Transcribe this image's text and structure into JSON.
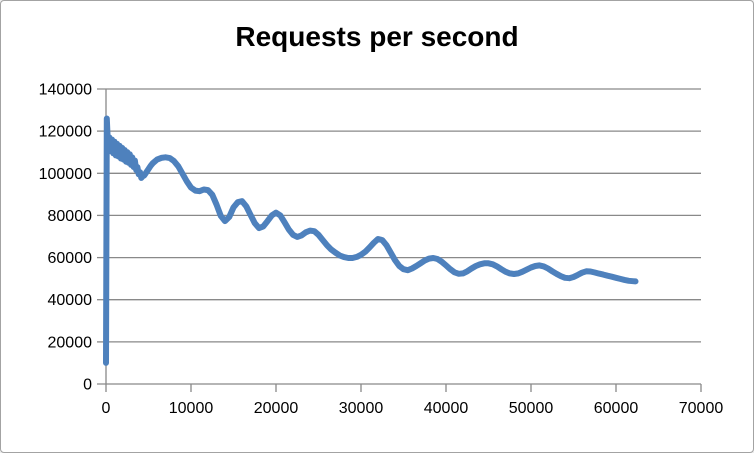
{
  "chart": {
    "title": "Requests per second"
  },
  "chart_data": {
    "type": "line",
    "title": "Requests per second",
    "xlabel": "",
    "ylabel": "",
    "xlim": [
      0,
      70000
    ],
    "ylim": [
      0,
      140000
    ],
    "x_ticks": [
      0,
      10000,
      20000,
      30000,
      40000,
      50000,
      60000,
      70000
    ],
    "x_tick_labels": [
      "0",
      "10000",
      "20000",
      "30000",
      "40000",
      "50000",
      "60000",
      "70000"
    ],
    "y_ticks": [
      0,
      20000,
      40000,
      60000,
      80000,
      100000,
      120000,
      140000
    ],
    "y_tick_labels": [
      "0",
      "20000",
      "40000",
      "60000",
      "80000",
      "100000",
      "120000",
      "140000"
    ],
    "grid": "horizontal",
    "legend": "none",
    "colors": {
      "line": "#4E81BD",
      "axis": "#898989",
      "gridline": "#898989",
      "text": "#000000",
      "background": "#FFFFFF",
      "border": "#A3A3A3"
    },
    "series": [
      {
        "name": "Requests per second",
        "color": "#4E81BD",
        "line_width": 6,
        "points": [
          [
            0,
            10000
          ],
          [
            100,
            126000
          ],
          [
            250,
            112000
          ],
          [
            400,
            117000
          ],
          [
            550,
            110500
          ],
          [
            700,
            116000
          ],
          [
            850,
            109500
          ],
          [
            1000,
            115000
          ],
          [
            1150,
            108500
          ],
          [
            1300,
            114000
          ],
          [
            1450,
            108000
          ],
          [
            1600,
            113000
          ],
          [
            1750,
            107000
          ],
          [
            1900,
            112000
          ],
          [
            2050,
            106500
          ],
          [
            2200,
            111000
          ],
          [
            2350,
            105500
          ],
          [
            2500,
            110000
          ],
          [
            2650,
            105000
          ],
          [
            2800,
            109000
          ],
          [
            2950,
            104000
          ],
          [
            3100,
            107500
          ],
          [
            3250,
            103000
          ],
          [
            3400,
            106000
          ],
          [
            3550,
            101500
          ],
          [
            3700,
            103000
          ],
          [
            3850,
            99500
          ],
          [
            4000,
            100500
          ],
          [
            4150,
            97800
          ],
          [
            4300,
            98500
          ],
          [
            4500,
            99000
          ],
          [
            4750,
            100500
          ],
          [
            5000,
            102000
          ],
          [
            5250,
            103500
          ],
          [
            5500,
            104800
          ],
          [
            6000,
            106500
          ],
          [
            6500,
            107300
          ],
          [
            7000,
            107600
          ],
          [
            7500,
            107200
          ],
          [
            8000,
            105800
          ],
          [
            8500,
            103300
          ],
          [
            9000,
            99800
          ],
          [
            9500,
            96200
          ],
          [
            10000,
            93200
          ],
          [
            10500,
            91800
          ],
          [
            11000,
            91500
          ],
          [
            11500,
            92300
          ],
          [
            12000,
            92000
          ],
          [
            12500,
            89800
          ],
          [
            13000,
            85200
          ],
          [
            13500,
            79800
          ],
          [
            14000,
            77300
          ],
          [
            14500,
            79300
          ],
          [
            15000,
            83800
          ],
          [
            15500,
            86300
          ],
          [
            16000,
            86800
          ],
          [
            16500,
            84300
          ],
          [
            17000,
            80300
          ],
          [
            17500,
            76300
          ],
          [
            18000,
            74000
          ],
          [
            18500,
            74800
          ],
          [
            19000,
            77300
          ],
          [
            19500,
            80000
          ],
          [
            20000,
            81300
          ],
          [
            20500,
            80000
          ],
          [
            21000,
            76800
          ],
          [
            21500,
            73300
          ],
          [
            22000,
            70800
          ],
          [
            22500,
            69800
          ],
          [
            23000,
            70500
          ],
          [
            23500,
            72000
          ],
          [
            24000,
            72800
          ],
          [
            24500,
            72500
          ],
          [
            25000,
            70800
          ],
          [
            25500,
            68300
          ],
          [
            26000,
            65800
          ],
          [
            26500,
            63800
          ],
          [
            27000,
            62300
          ],
          [
            27500,
            61000
          ],
          [
            28000,
            60200
          ],
          [
            28500,
            59800
          ],
          [
            29000,
            59800
          ],
          [
            29500,
            60300
          ],
          [
            30000,
            61300
          ],
          [
            30500,
            62800
          ],
          [
            31000,
            64800
          ],
          [
            31500,
            67000
          ],
          [
            32000,
            68800
          ],
          [
            32500,
            68300
          ],
          [
            33000,
            65800
          ],
          [
            33500,
            62300
          ],
          [
            34000,
            58800
          ],
          [
            34500,
            56000
          ],
          [
            35000,
            54500
          ],
          [
            35500,
            54000
          ],
          [
            36000,
            54800
          ],
          [
            36500,
            56000
          ],
          [
            37000,
            57300
          ],
          [
            37500,
            58600
          ],
          [
            38000,
            59500
          ],
          [
            38500,
            59800
          ],
          [
            39000,
            59300
          ],
          [
            39500,
            58000
          ],
          [
            40000,
            56300
          ],
          [
            40500,
            54500
          ],
          [
            41000,
            53000
          ],
          [
            41500,
            52300
          ],
          [
            42000,
            52500
          ],
          [
            42500,
            53500
          ],
          [
            43000,
            54800
          ],
          [
            43500,
            56000
          ],
          [
            44000,
            56800
          ],
          [
            44500,
            57300
          ],
          [
            45000,
            57300
          ],
          [
            45500,
            56800
          ],
          [
            46000,
            55800
          ],
          [
            46500,
            54500
          ],
          [
            47000,
            53300
          ],
          [
            47500,
            52500
          ],
          [
            48000,
            52200
          ],
          [
            48500,
            52500
          ],
          [
            49000,
            53300
          ],
          [
            49500,
            54300
          ],
          [
            50000,
            55300
          ],
          [
            50500,
            56000
          ],
          [
            51000,
            56300
          ],
          [
            51500,
            55800
          ],
          [
            52000,
            54800
          ],
          [
            52500,
            53500
          ],
          [
            53000,
            52300
          ],
          [
            53500,
            51200
          ],
          [
            54000,
            50400
          ],
          [
            54500,
            50200
          ],
          [
            55000,
            50800
          ],
          [
            55500,
            51800
          ],
          [
            56000,
            52800
          ],
          [
            56500,
            53500
          ],
          [
            57000,
            53400
          ],
          [
            57500,
            52900
          ],
          [
            58000,
            52400
          ],
          [
            58500,
            51900
          ],
          [
            59000,
            51400
          ],
          [
            59500,
            50900
          ],
          [
            60000,
            50400
          ],
          [
            60500,
            49900
          ],
          [
            61000,
            49400
          ],
          [
            61500,
            49000
          ],
          [
            62000,
            48800
          ],
          [
            62300,
            48700
          ]
        ]
      }
    ]
  }
}
